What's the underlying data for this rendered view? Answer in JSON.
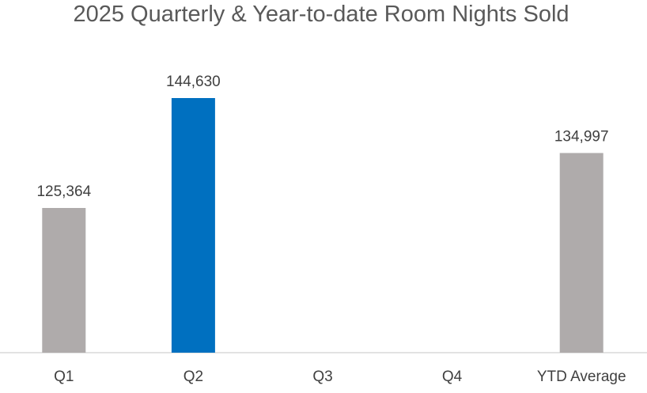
{
  "chart_data": {
    "type": "bar",
    "title": "2025 Quarterly & Year-to-date Room Nights Sold",
    "categories": [
      "Q1",
      "Q2",
      "Q3",
      "Q4",
      "YTD Average"
    ],
    "values": [
      125364,
      144630,
      null,
      null,
      134997
    ],
    "data_labels": [
      "125,364",
      "144,630",
      "",
      "",
      "134,997"
    ],
    "bar_colors": [
      "#afabab",
      "#0070c0",
      "#afabab",
      "#afabab",
      "#afabab"
    ],
    "ylim": [
      100000,
      150000
    ],
    "xlabel": "",
    "ylabel": "",
    "grid": false,
    "legend": "none"
  }
}
